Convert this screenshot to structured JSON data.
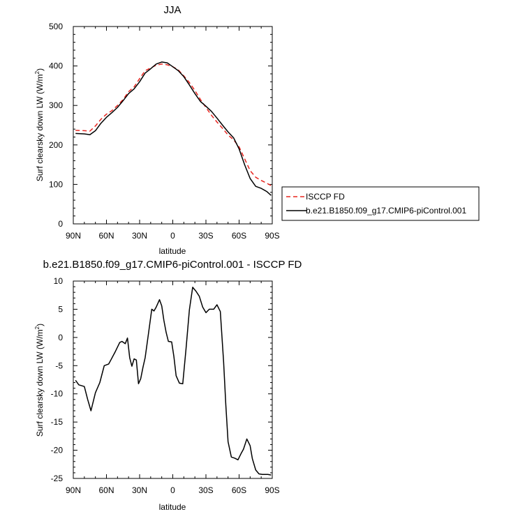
{
  "chart_data": [
    {
      "type": "line",
      "title": "JJA",
      "xlabel": "latitude",
      "ylabel": "Surf clearsky down LW (W/m",
      "ylabel_sup": "2",
      "ylabel_close": ")",
      "xlim": [
        90,
        -90
      ],
      "ylim": [
        0,
        500
      ],
      "xticks": [
        90,
        60,
        30,
        0,
        -30,
        -60,
        -90
      ],
      "xtick_labels": [
        "90N",
        "60N",
        "30N",
        "0",
        "30S",
        "60S",
        "90S"
      ],
      "yticks": [
        0,
        100,
        200,
        300,
        400,
        500
      ],
      "ytick_labels": [
        "0",
        "100",
        "200",
        "300",
        "400",
        "500"
      ],
      "legend": "right",
      "series": [
        {
          "name": "ISCCP FD",
          "color": "#e8251f",
          "dash": "dashed",
          "x": [
            88,
            80,
            75,
            70,
            65,
            60,
            55,
            50,
            45,
            40,
            35,
            30,
            25,
            20,
            15,
            10,
            5,
            0,
            -5,
            -10,
            -15,
            -20,
            -25,
            -30,
            -35,
            -40,
            -45,
            -50,
            -55,
            -60,
            -65,
            -70,
            -75,
            -80,
            -85,
            -89
          ],
          "y": [
            237,
            236,
            235,
            248,
            265,
            278,
            287,
            300,
            315,
            335,
            347,
            368,
            388,
            395,
            402,
            405,
            403,
            398,
            390,
            375,
            358,
            338,
            315,
            295,
            275,
            258,
            242,
            225,
            213,
            195,
            165,
            135,
            118,
            110,
            103,
            97
          ]
        },
        {
          "name": "b.e21.B1850.f09_g17.CMIP6-piControl.001",
          "color": "#000000",
          "dash": "solid",
          "x": [
            88,
            80,
            75,
            70,
            65,
            60,
            55,
            50,
            45,
            40,
            35,
            30,
            25,
            20,
            15,
            10,
            5,
            0,
            -5,
            -10,
            -15,
            -20,
            -25,
            -30,
            -35,
            -40,
            -45,
            -50,
            -55,
            -60,
            -65,
            -70,
            -75,
            -80,
            -85,
            -89
          ],
          "y": [
            229,
            228,
            226,
            236,
            255,
            270,
            282,
            295,
            312,
            330,
            342,
            360,
            382,
            393,
            405,
            410,
            408,
            398,
            388,
            373,
            352,
            330,
            310,
            298,
            285,
            268,
            250,
            233,
            218,
            190,
            150,
            115,
            95,
            90,
            82,
            72
          ]
        }
      ]
    },
    {
      "type": "line",
      "title": "b.e21.B1850.f09_g17.CMIP6-piControl.001 - ISCCP FD",
      "xlabel": "latitude",
      "ylabel": "Surf clearsky down LW (W/m",
      "ylabel_sup": "2",
      "ylabel_close": ")",
      "xlim": [
        90,
        -90
      ],
      "ylim": [
        -25,
        10
      ],
      "xticks": [
        90,
        60,
        30,
        0,
        -30,
        -60,
        -90
      ],
      "xtick_labels": [
        "90N",
        "60N",
        "30N",
        "0",
        "30S",
        "60S",
        "90S"
      ],
      "yticks": [
        10,
        5,
        0,
        -5,
        -10,
        -15,
        -20,
        -25
      ],
      "ytick_labels": [
        "10",
        "5",
        "0",
        "-5",
        "-10",
        "-15",
        "-20",
        "-25"
      ],
      "series": [
        {
          "color": "#000000",
          "dash": "solid",
          "x": [
            88,
            85,
            80,
            77,
            74,
            70,
            66,
            62,
            58,
            56,
            52,
            48,
            46,
            43,
            41,
            39,
            37,
            35,
            33,
            31,
            29,
            27,
            25,
            22,
            19,
            17,
            15,
            12,
            10,
            8,
            6,
            4,
            1,
            -1,
            -3,
            -6,
            -9,
            -12,
            -15,
            -18,
            -21,
            -24,
            -27,
            -30,
            -33,
            -37,
            -40,
            -43,
            -46,
            -48,
            -50,
            -53,
            -56,
            -59,
            -62,
            -64,
            -67,
            -70,
            -72,
            -75,
            -78,
            -81,
            -84,
            -86,
            -89
          ],
          "y": [
            -7.6,
            -8.4,
            -8.7,
            -11.0,
            -13.0,
            -9.8,
            -8.0,
            -5.0,
            -4.7,
            -4.0,
            -2.5,
            -0.9,
            -0.7,
            -1.1,
            -0.1,
            -3.6,
            -5.1,
            -3.8,
            -4.0,
            -8.2,
            -7.3,
            -5.3,
            -3.6,
            0.7,
            5.0,
            4.7,
            5.4,
            6.7,
            5.6,
            3.0,
            0.9,
            -0.7,
            -0.8,
            -3.4,
            -6.8,
            -8.1,
            -8.2,
            -2.0,
            4.9,
            8.9,
            8.2,
            7.3,
            5.4,
            4.4,
            5.0,
            5.0,
            5.8,
            4.6,
            -4.3,
            -12.0,
            -18.5,
            -21.2,
            -21.4,
            -21.7,
            -20.5,
            -19.8,
            -18.0,
            -19.2,
            -21.5,
            -23.5,
            -24.2,
            -24.3,
            -24.3,
            -24.3,
            -24.4
          ]
        }
      ]
    }
  ]
}
